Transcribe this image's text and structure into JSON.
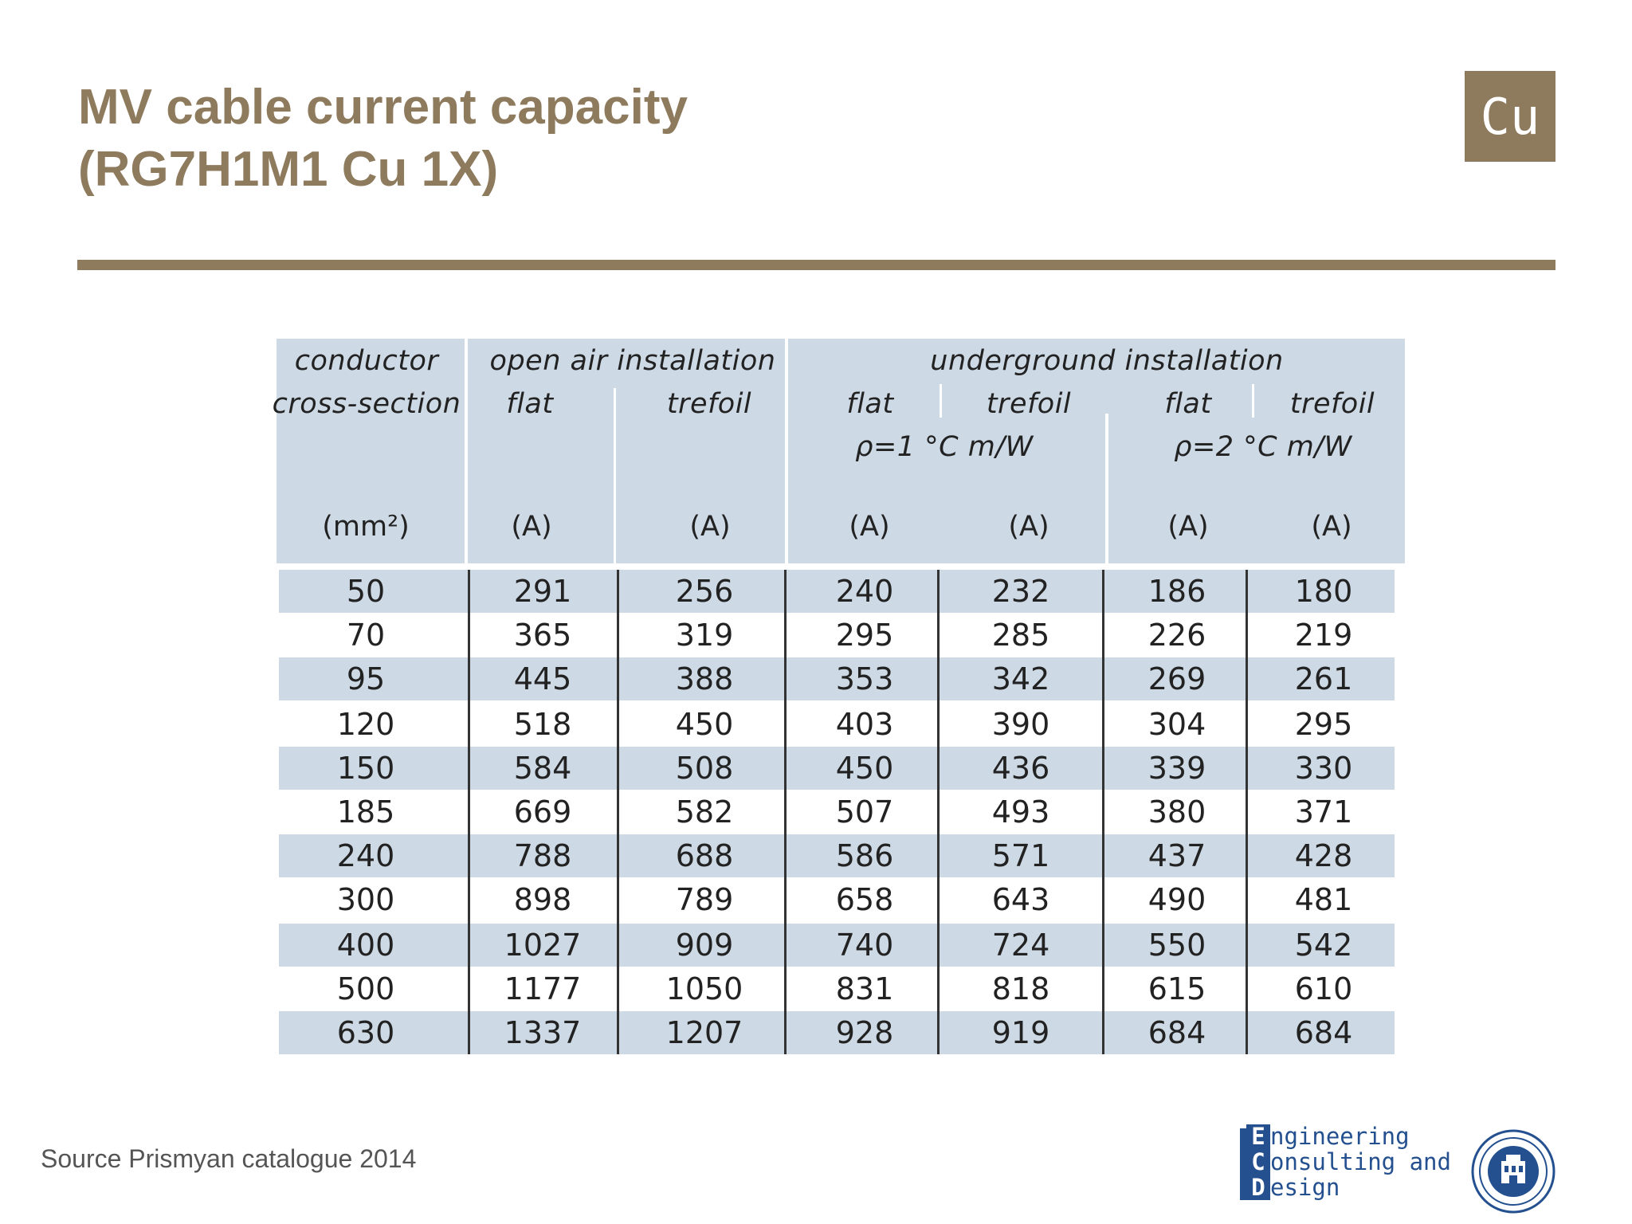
{
  "title": {
    "line1": "MV cable current capacity",
    "line2": "(RG7H1M1 Cu 1X)"
  },
  "badge": "Cu",
  "table": {
    "headers": {
      "conductor_line1": "conductor",
      "conductor_line2": "cross-section",
      "open_air": "open air installation",
      "underground": "underground installation",
      "flat": "flat",
      "trefoil": "trefoil",
      "rho1": "ρ=1 °C m/W",
      "rho2": "ρ=2 °C m/W"
    },
    "units": [
      "(mm²)",
      "(A)",
      "(A)",
      "(A)",
      "(A)",
      "(A)",
      "(A)"
    ],
    "rows": [
      [
        "50",
        "291",
        "256",
        "240",
        "232",
        "186",
        "180"
      ],
      [
        "70",
        "365",
        "319",
        "295",
        "285",
        "226",
        "219"
      ],
      [
        "95",
        "445",
        "388",
        "353",
        "342",
        "269",
        "261"
      ],
      [
        "120",
        "518",
        "450",
        "403",
        "390",
        "304",
        "295"
      ],
      [
        "150",
        "584",
        "508",
        "450",
        "436",
        "339",
        "330"
      ],
      [
        "185",
        "669",
        "582",
        "507",
        "493",
        "380",
        "371"
      ],
      [
        "240",
        "788",
        "688",
        "586",
        "571",
        "437",
        "428"
      ],
      [
        "300",
        "898",
        "789",
        "658",
        "643",
        "490",
        "481"
      ],
      [
        "400",
        "1027",
        "909",
        "740",
        "724",
        "550",
        "542"
      ],
      [
        "500",
        "1177",
        "1050",
        "831",
        "818",
        "615",
        "610"
      ],
      [
        "630",
        "1337",
        "1207",
        "928",
        "919",
        "684",
        "684"
      ]
    ]
  },
  "source": "Source Prismyan catalogue 2014",
  "logo": {
    "line1": "Engineering",
    "line2": "Consulting and",
    "line3": "Design"
  },
  "colors": {
    "accent": "#8e7b5e",
    "table_band": "#cdd9e4",
    "logo_blue": "#24508f"
  }
}
